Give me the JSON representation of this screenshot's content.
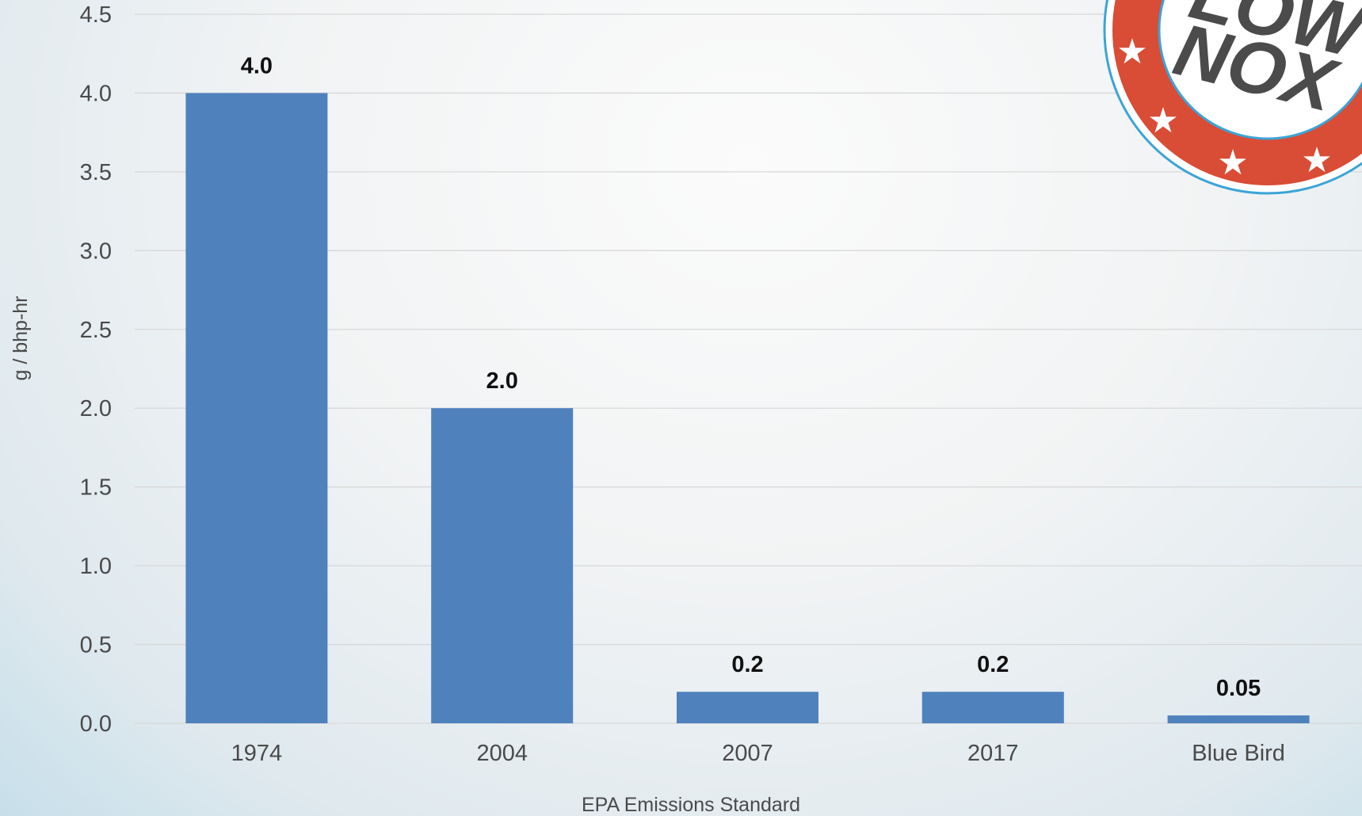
{
  "chart_data": {
    "type": "bar",
    "categories": [
      "1974",
      "2004",
      "2007",
      "2017",
      "Blue Bird"
    ],
    "values": [
      4.0,
      2.0,
      0.2,
      0.2,
      0.05
    ],
    "data_labels": [
      "4.0",
      "2.0",
      "0.2",
      "0.2",
      "0.05"
    ],
    "xlabel": "EPA Emissions Standard",
    "ylabel": "g / bhp-hr",
    "ylim": [
      0,
      4.5
    ],
    "yticks": [
      "0.0",
      "0.5",
      "1.0",
      "1.5",
      "2.0",
      "2.5",
      "3.0",
      "3.5",
      "4.0",
      "4.5"
    ],
    "grid": true,
    "bar_color": "#4f81bd"
  },
  "badge": {
    "line1": "LOW",
    "line2": "NOX",
    "ring_color": "#d94c35",
    "border_color": "#3ca4d6"
  }
}
